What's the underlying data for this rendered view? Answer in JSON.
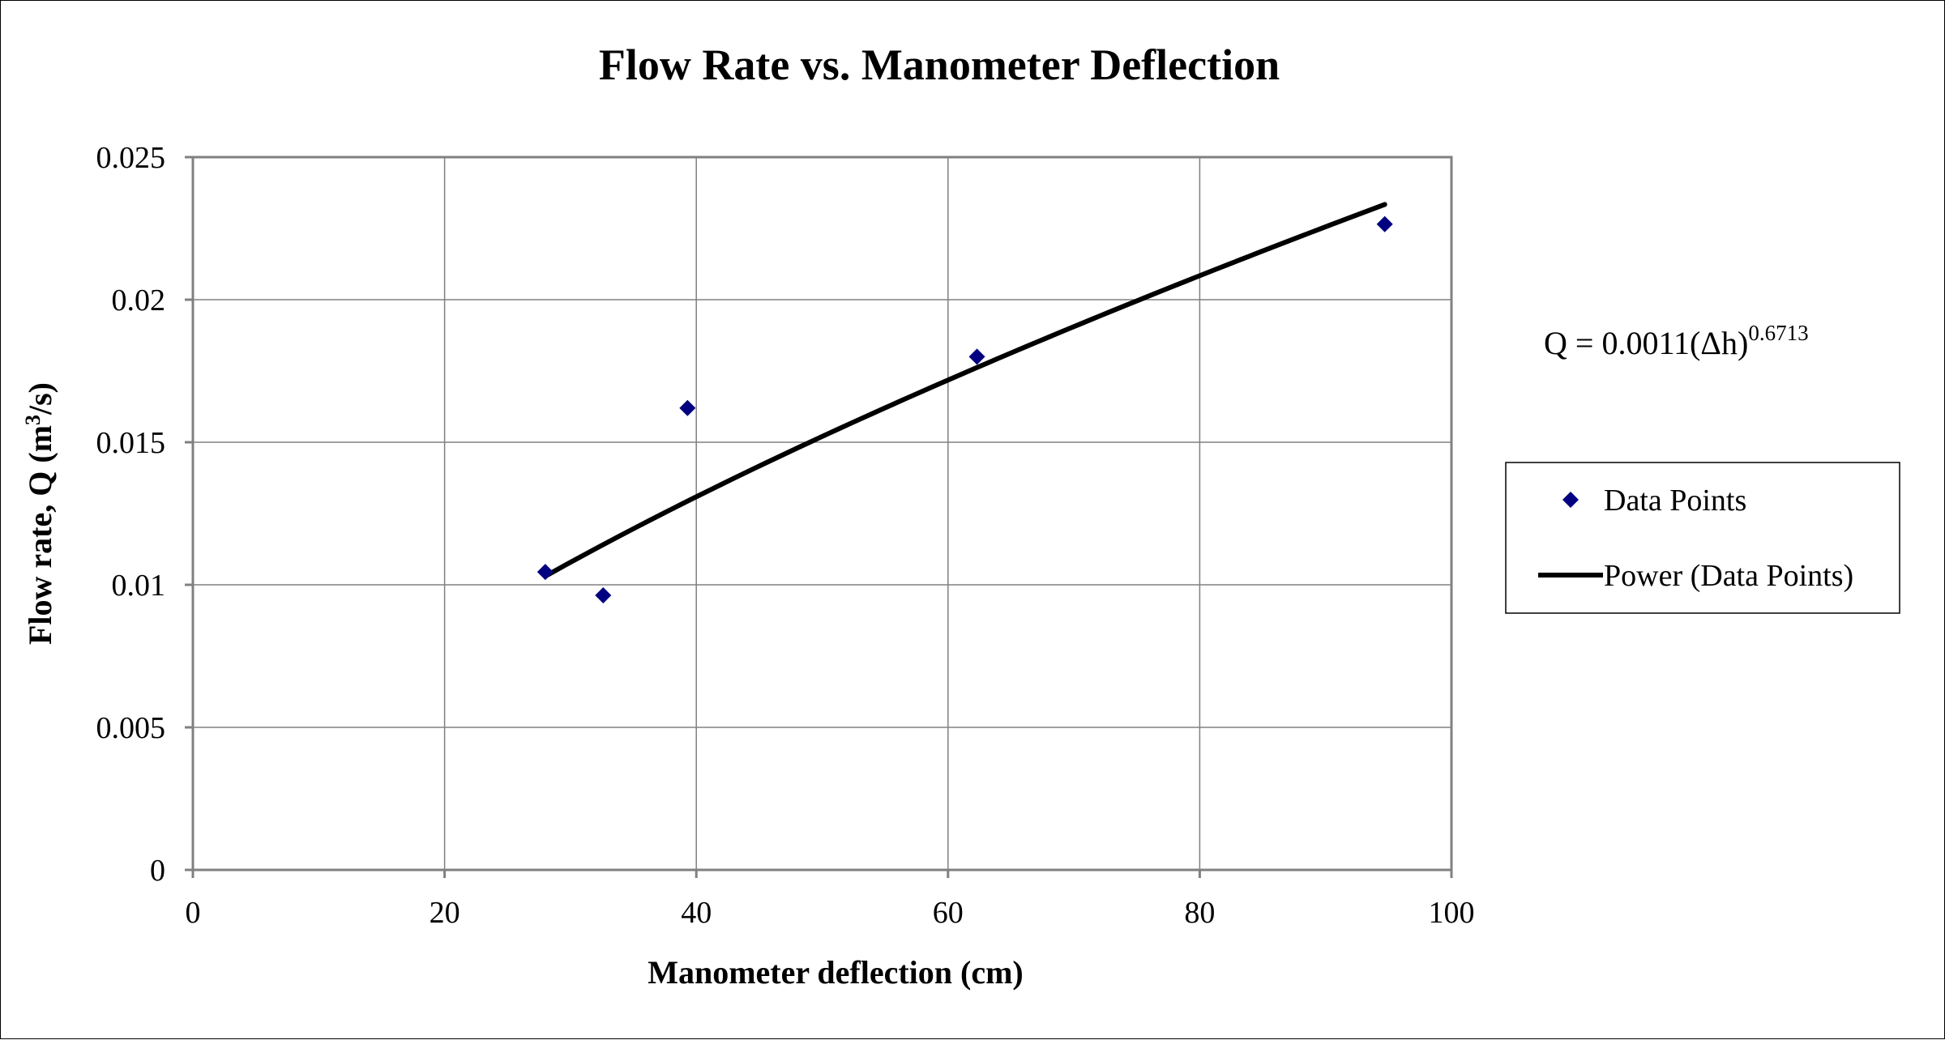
{
  "chart_data": {
    "type": "scatter",
    "title": "Flow Rate vs. Manometer Deflection",
    "xlabel": "Manometer deflection (cm)",
    "ylabel_main": "Flow rate, Q (m",
    "ylabel_sup": "3",
    "ylabel_tail": "/s)",
    "xlim": [
      0,
      100
    ],
    "ylim": [
      0,
      0.025
    ],
    "x_ticks": [
      "0",
      "20",
      "40",
      "60",
      "80",
      "100"
    ],
    "y_ticks": [
      "0",
      "0.005",
      "0.01",
      "0.015",
      "0.02",
      "0.025"
    ],
    "grid": true,
    "legend_position": "right",
    "series": [
      {
        "name": "Data Points",
        "kind": "scatter",
        "marker": "diamond",
        "color": "#000080",
        "x": [
          28.0,
          32.6,
          39.3,
          62.3,
          94.7
        ],
        "y": [
          0.01045,
          0.00963,
          0.0162,
          0.018,
          0.02265
        ]
      },
      {
        "name": "Power (Data Points)",
        "kind": "trendline",
        "color": "#000000",
        "model": "power",
        "coefficient": 0.0011,
        "exponent": 0.6713,
        "x_range": [
          28.0,
          94.7
        ]
      }
    ],
    "annotation": {
      "prefix": "Q = 0.0011(Δh)",
      "superscript": "0.6713"
    }
  }
}
